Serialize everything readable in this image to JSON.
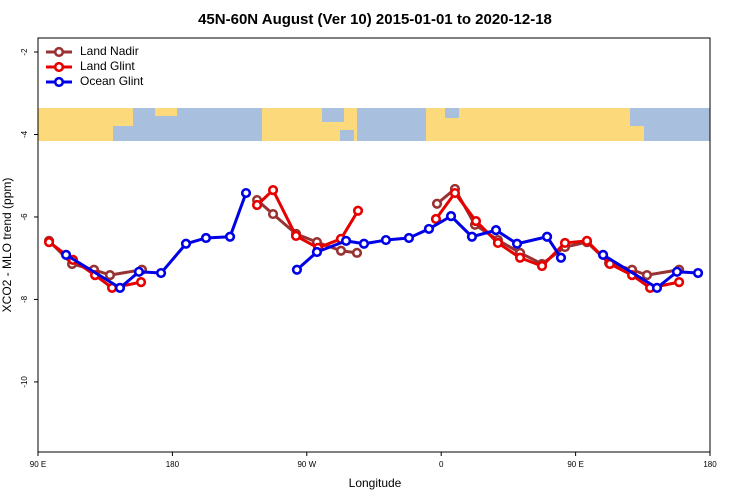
{
  "chart_data": {
    "type": "line",
    "title": "45N-60N August (Ver 10)   2015-01-01 to 2020-12-18",
    "x_label": "Longitude",
    "y_label": "XCO2 - MLO trend (ppm)",
    "xlim": [
      90,
      540
    ],
    "xticks": [
      {
        "value": 90,
        "label": "90 E"
      },
      180,
      {
        "value": 270,
        "label": "90 W"
      },
      {
        "value": 360,
        "label": "0"
      },
      {
        "value": 450,
        "label": "90 E"
      },
      {
        "value": 540,
        "label": "180"
      }
    ],
    "ylim": [
      -11.7,
      -1.66
    ],
    "yticks": [
      -2,
      -4,
      -6,
      -8,
      -10
    ],
    "legend": "top-left",
    "series": [
      {
        "name": "Land Nadir",
        "color": "#993333",
        "x": [
          97.4,
          112.8,
          127.5,
          138.2,
          159.6,
          null,
          236.7,
          247.4,
          262.8,
          276.8,
          292.9,
          303.6,
          null,
          357.2,
          369.2,
          382.6,
          398,
          412.8,
          427.5,
          442.9,
          457.6,
          472.4,
          487.8,
          497.8,
          519.3
        ],
        "values": [
          -6.58,
          -7.14,
          -7.28,
          -7.41,
          -7.28,
          null,
          -5.59,
          -5.93,
          -6.41,
          -6.61,
          -6.82,
          -6.87,
          null,
          -5.68,
          -5.32,
          -6.19,
          -6.56,
          -6.87,
          -7.14,
          -6.73,
          -6.61,
          -7.12,
          -7.28,
          -7.41,
          -7.28
        ]
      },
      {
        "name": "Land Glint",
        "color": "#e60000",
        "x": [
          97.4,
          113.4,
          128.2,
          139.6,
          159,
          null,
          236.7,
          247.4,
          262.8,
          277.5,
          292.9,
          304.3,
          null,
          356.5,
          369.2,
          383.3,
          398,
          412.8,
          427.5,
          442.9,
          457.6,
          473,
          487.8,
          499.9,
          519.3
        ],
        "values": [
          -6.61,
          -7.04,
          -7.41,
          -7.72,
          -7.58,
          null,
          -5.71,
          -5.35,
          -6.46,
          -6.75,
          -6.53,
          -5.85,
          null,
          -6.05,
          -5.42,
          -6.1,
          -6.63,
          -6.99,
          -7.19,
          -6.63,
          -6.58,
          -7.14,
          -7.41,
          -7.72,
          -7.58
        ]
      },
      {
        "name": "Ocean Glint",
        "color": "#0000e6",
        "x": [
          108.8,
          144.9,
          157.6,
          172.4,
          189.1,
          202.5,
          218.6,
          229.3,
          null,
          263.4,
          276.8,
          296.3,
          308.3,
          323,
          338.4,
          351.8,
          366.6,
          380.6,
          396.7,
          410.8,
          430.9,
          440.2,
          null,
          468.4,
          504.5,
          517.9,
          532
        ],
        "values": [
          -6.92,
          -7.72,
          -7.33,
          -7.36,
          -6.65,
          -6.51,
          -6.48,
          -5.42,
          null,
          -7.28,
          -6.85,
          -6.58,
          -6.65,
          -6.56,
          -6.51,
          -6.29,
          -5.98,
          -6.48,
          -6.32,
          -6.65,
          -6.48,
          -6.99,
          null,
          -6.92,
          -7.72,
          -7.33,
          -7.36
        ]
      }
    ]
  }
}
